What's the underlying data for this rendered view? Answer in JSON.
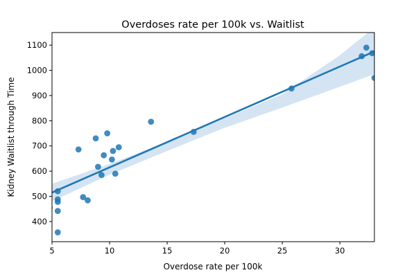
{
  "chart_data": {
    "type": "scatter",
    "title": "Overdoses rate per 100k vs. Waitlist",
    "xlabel": "Overdose rate per 100k",
    "ylabel": "Kidney Waitlist through Time",
    "xlim": [
      5,
      33
    ],
    "ylim": [
      320,
      1150
    ],
    "x_ticks": [
      5,
      10,
      15,
      20,
      25,
      30
    ],
    "y_ticks": [
      400,
      500,
      600,
      700,
      800,
      900,
      1000,
      1100
    ],
    "grid": false,
    "legend": "none",
    "colors": {
      "points": "#1f77b4",
      "line": "#1f77b4",
      "band": "#c6dbef"
    },
    "points": [
      {
        "x": 4.8,
        "y": 455
      },
      {
        "x": 5.5,
        "y": 520
      },
      {
        "x": 5.5,
        "y": 488
      },
      {
        "x": 5.5,
        "y": 478
      },
      {
        "x": 5.5,
        "y": 442
      },
      {
        "x": 5.5,
        "y": 357
      },
      {
        "x": 7.3,
        "y": 686
      },
      {
        "x": 7.7,
        "y": 497
      },
      {
        "x": 8.1,
        "y": 484
      },
      {
        "x": 8.8,
        "y": 730
      },
      {
        "x": 9.0,
        "y": 617
      },
      {
        "x": 9.3,
        "y": 585
      },
      {
        "x": 9.5,
        "y": 663
      },
      {
        "x": 9.8,
        "y": 750
      },
      {
        "x": 10.2,
        "y": 646
      },
      {
        "x": 10.3,
        "y": 680
      },
      {
        "x": 10.5,
        "y": 590
      },
      {
        "x": 10.8,
        "y": 695
      },
      {
        "x": 13.6,
        "y": 796
      },
      {
        "x": 17.3,
        "y": 756
      },
      {
        "x": 25.8,
        "y": 928
      },
      {
        "x": 31.9,
        "y": 1056
      },
      {
        "x": 32.3,
        "y": 1090
      },
      {
        "x": 32.8,
        "y": 1068
      },
      {
        "x": 33.0,
        "y": 970
      }
    ],
    "regression": {
      "x": [
        5,
        33
      ],
      "y": [
        515,
        1075
      ]
    },
    "confidence_band": {
      "x": [
        5,
        10,
        15,
        20,
        25,
        30,
        33
      ],
      "lower": [
        480,
        586,
        680,
        772,
        852,
        935,
        985
      ],
      "upper": [
        550,
        628,
        717,
        810,
        905,
        1060,
        1170
      ]
    }
  }
}
